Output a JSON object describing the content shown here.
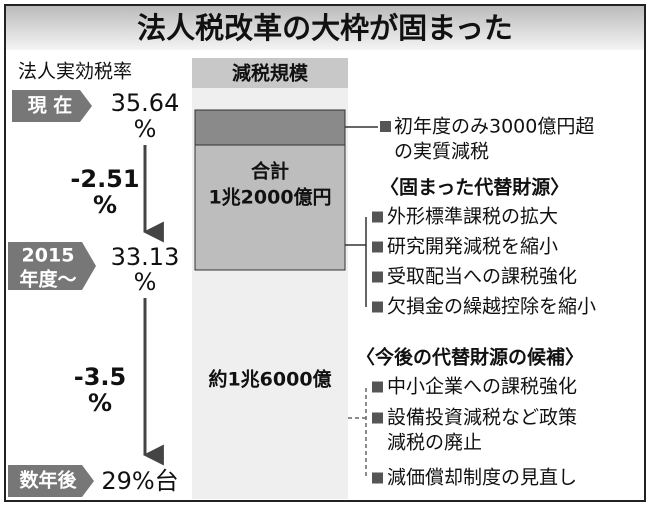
{
  "title": "法人税改革の大枠が固まった",
  "tax_rate": {
    "heading": "法人実効税率",
    "stages": [
      {
        "label": [
          "現 在"
        ],
        "rate": "35.64",
        "unit": "%"
      },
      {
        "label": [
          "2015",
          "年度～"
        ],
        "rate": "33.13",
        "unit": "%"
      },
      {
        "label": [
          "数年後"
        ],
        "rate": "29%台"
      }
    ],
    "changes": [
      {
        "value": "-2.51",
        "unit": "%"
      },
      {
        "value": "-3.5",
        "unit": "%"
      }
    ]
  },
  "tax_cut": {
    "heading": "減税規模",
    "total": [
      "合計",
      "1兆2000億円"
    ],
    "future": "約1兆6000億"
  },
  "notes": {
    "first_year": [
      "初年度のみ3000億円超",
      "の実質減税"
    ],
    "fixed": {
      "heading": "〈固まった代替財源〉",
      "items": [
        "外形標準課税の拡大",
        "研究開発減税を縮小",
        "受取配当への課税強化",
        "欠損金の繰越控除を縮小"
      ]
    },
    "candidates": {
      "heading": "〈今後の代替財源の候補〉",
      "items": [
        [
          "中小企業への課税強化"
        ],
        [
          "設備投資減税など政策",
          "減税の廃止"
        ],
        [
          "減価償却制度の見直し"
        ]
      ]
    }
  }
}
